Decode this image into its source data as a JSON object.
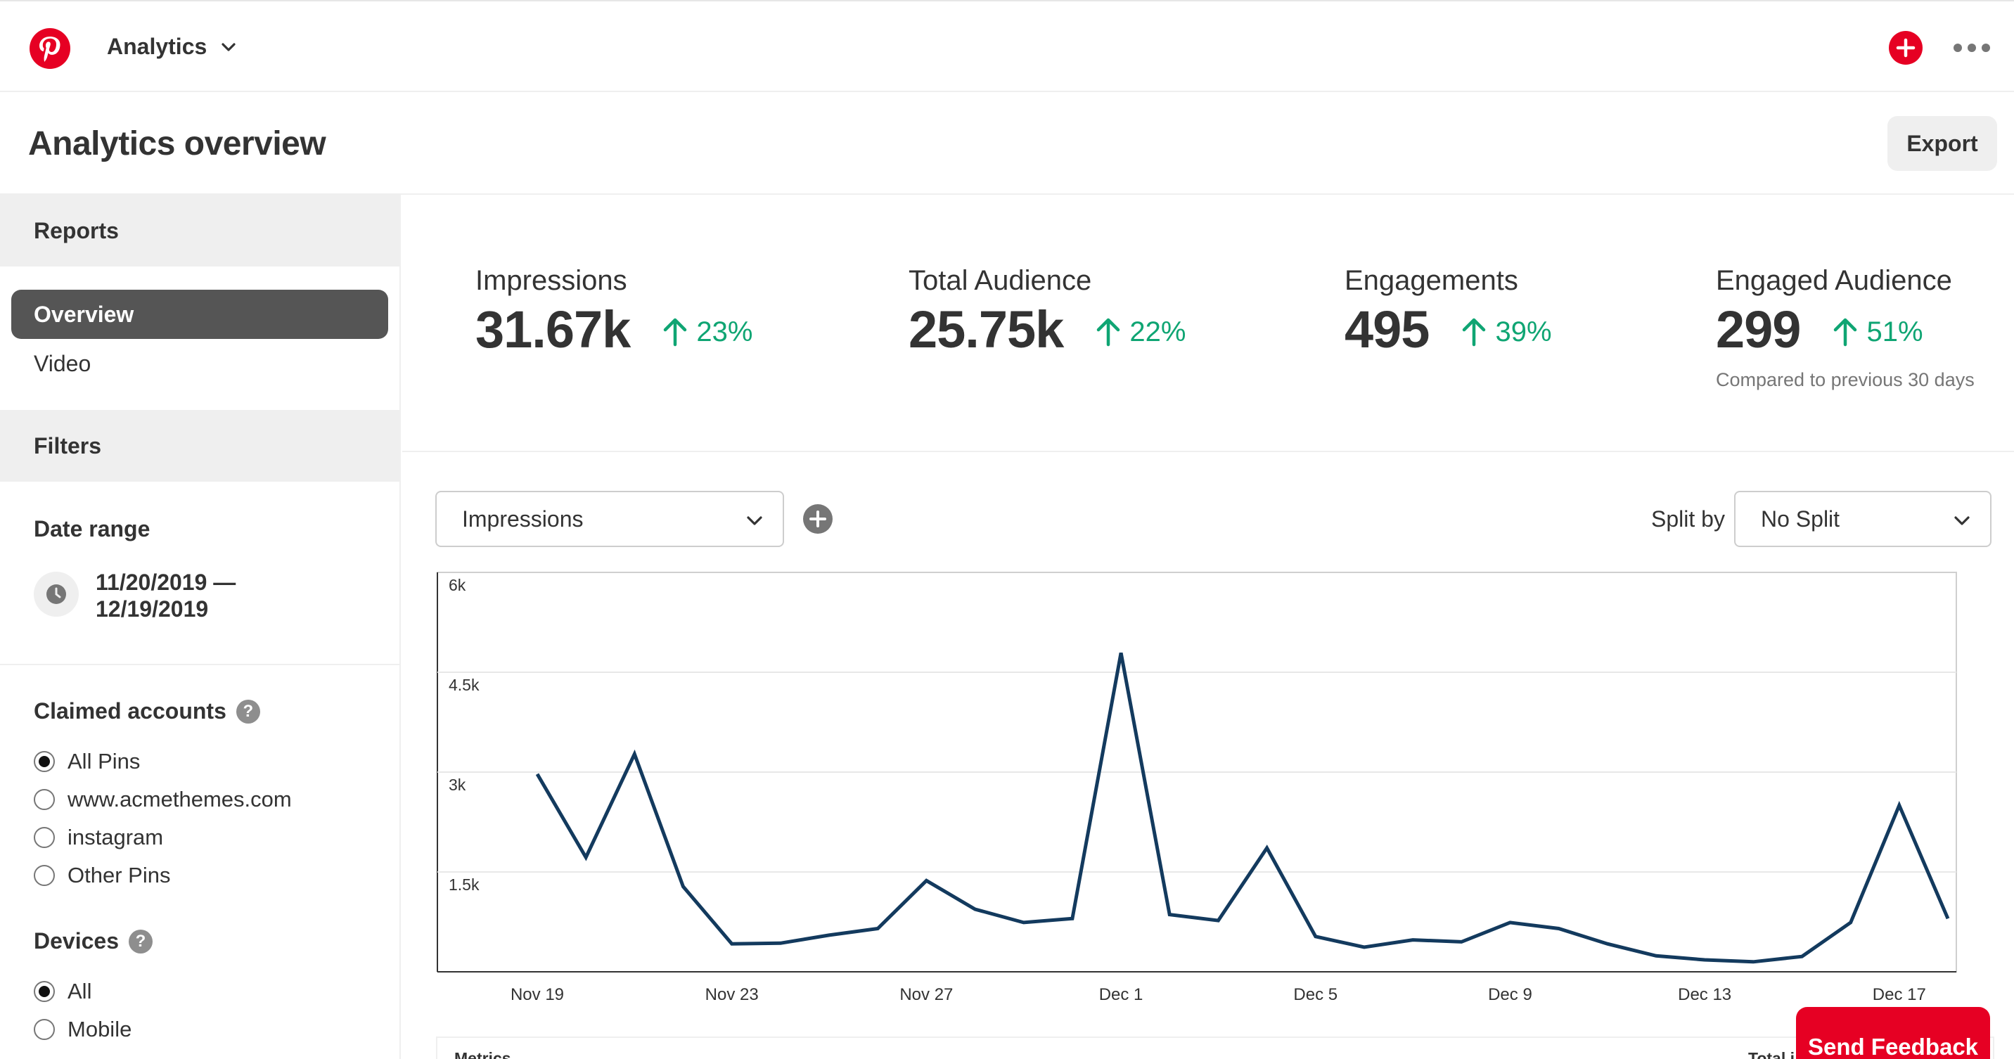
{
  "nav": {
    "title": "Analytics",
    "logo_icon": "pinterest-logo",
    "brand_color": "#e60023"
  },
  "header": {
    "title": "Analytics overview",
    "export_label": "Export"
  },
  "sidebar": {
    "reports_heading": "Reports",
    "reports": [
      {
        "label": "Overview",
        "active": true
      },
      {
        "label": "Video",
        "active": false
      }
    ],
    "filters_heading": "Filters",
    "date_range": {
      "label": "Date range",
      "line1": "11/20/2019 —",
      "line2": "12/19/2019"
    },
    "claimed_accounts": {
      "title": "Claimed accounts",
      "help": "?",
      "options": [
        {
          "label": "All Pins",
          "checked": true
        },
        {
          "label": "www.acmethemes.com",
          "checked": false
        },
        {
          "label": "instagram",
          "checked": false
        },
        {
          "label": "Other Pins",
          "checked": false
        }
      ]
    },
    "devices": {
      "title": "Devices",
      "help": "?",
      "options": [
        {
          "label": "All",
          "checked": true
        },
        {
          "label": "Mobile",
          "checked": false
        }
      ]
    }
  },
  "metrics": {
    "items": [
      {
        "label": "Impressions",
        "value": "31.67k",
        "change": "23%"
      },
      {
        "label": "Total Audience",
        "value": "25.75k",
        "change": "22%"
      },
      {
        "label": "Engagements",
        "value": "495",
        "change": "39%"
      },
      {
        "label": "Engaged Audience",
        "value": "299",
        "change": "51%"
      }
    ],
    "compared_note": "Compared to previous 30 days",
    "positive_color": "#0fa573"
  },
  "controls": {
    "metric_select": "Impressions",
    "split_label": "Split by",
    "split_select": "No Split"
  },
  "chart_data": {
    "type": "line",
    "title": "",
    "xlabel": "",
    "ylabel": "",
    "ylim": [
      0,
      6000
    ],
    "yticks": [
      "6k",
      "4.5k",
      "3k",
      "1.5k"
    ],
    "ytick_values": [
      6000,
      4500,
      3000,
      1500
    ],
    "xtick_labels": [
      "Nov 19",
      "Nov 23",
      "Nov 27",
      "Dec 1",
      "Dec 5",
      "Dec 9",
      "Dec 13",
      "Dec 17"
    ],
    "xtick_indices": [
      0,
      4,
      8,
      12,
      16,
      20,
      24,
      28
    ],
    "line_color": "#133a5e",
    "grid": true,
    "series": [
      {
        "values": [
          2970,
          1720,
          3270,
          1280,
          420,
          430,
          550,
          650,
          1370,
          940,
          740,
          800,
          4790,
          860,
          770,
          1860,
          530,
          370,
          480,
          450,
          740,
          650,
          420,
          240,
          180,
          150,
          230,
          740,
          2500,
          800
        ]
      }
    ]
  },
  "table": {
    "col1": "Metrics",
    "col2": "Total i"
  },
  "feedback": {
    "label": "Send Feedback"
  }
}
